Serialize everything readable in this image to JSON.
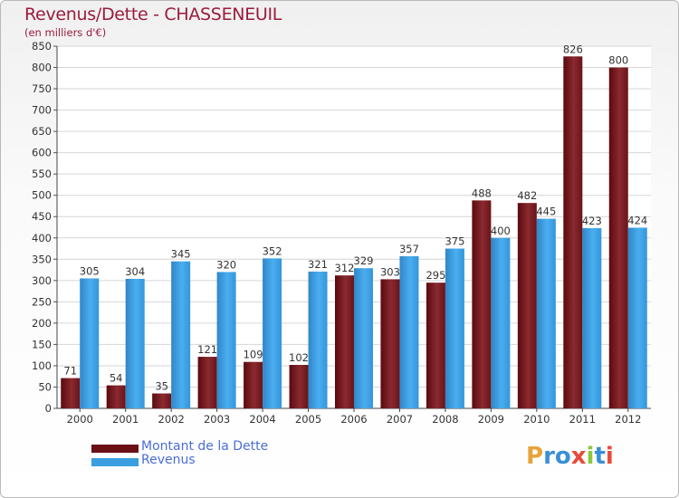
{
  "chart_data": {
    "type": "bar",
    "title": "Revenus/Dette - CHASSENEUIL",
    "subtitle": "(en milliers d'€)",
    "categories": [
      "2000",
      "2001",
      "2002",
      "2003",
      "2004",
      "2005",
      "2006",
      "2007",
      "2008",
      "2009",
      "2010",
      "2011",
      "2012"
    ],
    "series": [
      {
        "name": "Montant de la Dette",
        "color": "#7a1a1f",
        "values": [
          71,
          54,
          35,
          121,
          109,
          102,
          312,
          303,
          295,
          488,
          482,
          826,
          800
        ]
      },
      {
        "name": "Revenus",
        "color": "#3a9ee0",
        "values": [
          305,
          304,
          345,
          320,
          352,
          321,
          329,
          357,
          375,
          400,
          445,
          423,
          424
        ]
      }
    ],
    "ylim": [
      0,
      850
    ],
    "yticks": [
      0,
      50,
      100,
      150,
      200,
      250,
      300,
      350,
      400,
      450,
      500,
      550,
      600,
      650,
      700,
      750,
      800,
      850
    ],
    "grid": true,
    "legend_position": "bottom-left"
  },
  "logo": {
    "text": "Proxiti",
    "letters": [
      "P",
      "r",
      "o",
      "x",
      "i",
      "t",
      "i"
    ],
    "colors": [
      "#e8a33a",
      "#3a8fd6",
      "#3a8fd6",
      "#e84a3a",
      "#8cc63f",
      "#3a8fd6",
      "#e84a3a"
    ]
  }
}
